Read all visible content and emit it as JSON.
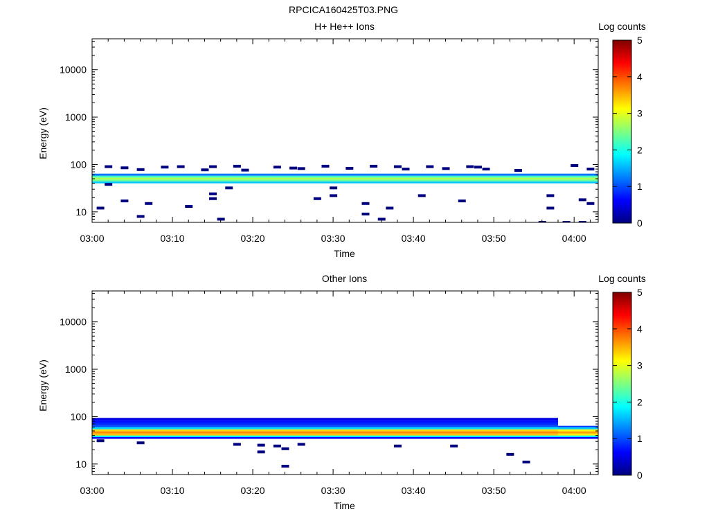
{
  "figure_title": "RPCICA160425T03.PNG",
  "colormap": [
    "#00007f",
    "#0000ff",
    "#007fff",
    "#00ffff",
    "#7fff7f",
    "#ffff00",
    "#ff7f00",
    "#ff0000",
    "#7f0000"
  ],
  "chart_data": [
    {
      "type": "heatmap",
      "title": "H+ He++ Ions",
      "xlabel": "Time",
      "ylabel": "Energy (eV)",
      "x_range": [
        "03:00",
        "04:03"
      ],
      "x_ticks": [
        "03:00",
        "03:10",
        "03:20",
        "03:30",
        "03:40",
        "03:50",
        "04:00"
      ],
      "y_scale": "log",
      "y_range": [
        6,
        45000
      ],
      "y_ticks": [
        "10",
        "100",
        "1000",
        "10000"
      ],
      "colorbar": {
        "label": "Log counts",
        "range": [
          0,
          5
        ],
        "ticks": [
          "0",
          "1",
          "2",
          "3",
          "4",
          "5"
        ]
      },
      "bands": [
        {
          "e_low": 40,
          "e_high": 44,
          "log_counts": 1.6
        },
        {
          "e_low": 44,
          "e_high": 48,
          "log_counts": 2.4
        },
        {
          "e_low": 48,
          "e_high": 53,
          "log_counts": 2.7
        },
        {
          "e_low": 53,
          "e_high": 58,
          "log_counts": 2.2
        },
        {
          "e_low": 58,
          "e_high": 64,
          "log_counts": 1.2
        }
      ],
      "band_extent": [
        "03:00",
        "04:03"
      ],
      "sparse": [
        {
          "t": "03:01",
          "e": 12
        },
        {
          "t": "03:02",
          "e": 90
        },
        {
          "t": "03:02",
          "e": 38
        },
        {
          "t": "03:04",
          "e": 85
        },
        {
          "t": "03:04",
          "e": 17
        },
        {
          "t": "03:06",
          "e": 78
        },
        {
          "t": "03:06",
          "e": 8
        },
        {
          "t": "03:07",
          "e": 15
        },
        {
          "t": "03:09",
          "e": 88
        },
        {
          "t": "03:11",
          "e": 90
        },
        {
          "t": "03:12",
          "e": 13
        },
        {
          "t": "03:14",
          "e": 77
        },
        {
          "t": "03:15",
          "e": 24
        },
        {
          "t": "03:15",
          "e": 19
        },
        {
          "t": "03:15",
          "e": 90
        },
        {
          "t": "03:16",
          "e": 7
        },
        {
          "t": "03:17",
          "e": 32
        },
        {
          "t": "03:18",
          "e": 92
        },
        {
          "t": "03:19",
          "e": 76
        },
        {
          "t": "03:23",
          "e": 88
        },
        {
          "t": "03:25",
          "e": 84
        },
        {
          "t": "03:26",
          "e": 82
        },
        {
          "t": "03:28",
          "e": 19
        },
        {
          "t": "03:29",
          "e": 92
        },
        {
          "t": "03:30",
          "e": 32
        },
        {
          "t": "03:30",
          "e": 22
        },
        {
          "t": "03:32",
          "e": 83
        },
        {
          "t": "03:34",
          "e": 15
        },
        {
          "t": "03:34",
          "e": 9
        },
        {
          "t": "03:35",
          "e": 92
        },
        {
          "t": "03:36",
          "e": 7
        },
        {
          "t": "03:37",
          "e": 12
        },
        {
          "t": "03:38",
          "e": 90
        },
        {
          "t": "03:39",
          "e": 80
        },
        {
          "t": "03:41",
          "e": 22
        },
        {
          "t": "03:42",
          "e": 90
        },
        {
          "t": "03:44",
          "e": 82
        },
        {
          "t": "03:46",
          "e": 17
        },
        {
          "t": "03:47",
          "e": 90
        },
        {
          "t": "03:48",
          "e": 88
        },
        {
          "t": "03:49",
          "e": 80
        },
        {
          "t": "03:53",
          "e": 75
        },
        {
          "t": "03:56",
          "e": 6
        },
        {
          "t": "03:57",
          "e": 22
        },
        {
          "t": "03:57",
          "e": 12
        },
        {
          "t": "03:59",
          "e": 6
        },
        {
          "t": "04:00",
          "e": 95
        },
        {
          "t": "04:01",
          "e": 18
        },
        {
          "t": "04:01",
          "e": 6
        },
        {
          "t": "04:02",
          "e": 80
        },
        {
          "t": "04:02",
          "e": 15
        }
      ]
    },
    {
      "type": "heatmap",
      "title": "Other Ions",
      "xlabel": "Time",
      "ylabel": "Energy (eV)",
      "x_range": [
        "03:00",
        "04:03"
      ],
      "x_ticks": [
        "03:00",
        "03:10",
        "03:20",
        "03:30",
        "03:40",
        "03:50",
        "04:00"
      ],
      "y_scale": "log",
      "y_range": [
        6,
        45000
      ],
      "y_ticks": [
        "10",
        "100",
        "1000",
        "10000"
      ],
      "colorbar": {
        "label": "Log counts",
        "range": [
          0,
          5
        ],
        "ticks": [
          "0",
          "1",
          "2",
          "3",
          "4",
          "5"
        ]
      },
      "bands": [
        {
          "e_low": 34,
          "e_high": 37,
          "log_counts": 0.6
        },
        {
          "e_low": 37,
          "e_high": 40,
          "log_counts": 1.8
        },
        {
          "e_low": 40,
          "e_high": 44,
          "log_counts": 3.4
        },
        {
          "e_low": 44,
          "e_high": 49,
          "log_counts": 3.7
        },
        {
          "e_low": 49,
          "e_high": 54,
          "log_counts": 3.3
        },
        {
          "e_low": 54,
          "e_high": 60,
          "log_counts": 1.7
        },
        {
          "e_low": 60,
          "e_high": 67,
          "log_counts": 1.0
        },
        {
          "e_low": 67,
          "e_high": 75,
          "log_counts": 0.8
        },
        {
          "e_low": 75,
          "e_high": 84,
          "log_counts": 0.7
        },
        {
          "e_low": 84,
          "e_high": 94,
          "log_counts": 0.5
        }
      ],
      "band_extent": [
        "03:00",
        "03:58"
      ],
      "tail_bands": [
        {
          "e_low": 34,
          "e_high": 37,
          "log_counts": 0.6
        },
        {
          "e_low": 37,
          "e_high": 40,
          "log_counts": 1.8
        },
        {
          "e_low": 40,
          "e_high": 44,
          "log_counts": 3.2
        },
        {
          "e_low": 44,
          "e_high": 49,
          "log_counts": 3.6
        },
        {
          "e_low": 49,
          "e_high": 54,
          "log_counts": 3.1
        },
        {
          "e_low": 54,
          "e_high": 60,
          "log_counts": 1.6
        },
        {
          "e_low": 60,
          "e_high": 64,
          "log_counts": 0.9
        }
      ],
      "tail_extent": [
        "03:58",
        "04:03"
      ],
      "sparse": [
        {
          "t": "03:01",
          "e": 31
        },
        {
          "t": "03:06",
          "e": 28
        },
        {
          "t": "03:18",
          "e": 26
        },
        {
          "t": "03:21",
          "e": 25
        },
        {
          "t": "03:21",
          "e": 18
        },
        {
          "t": "03:23",
          "e": 24
        },
        {
          "t": "03:24",
          "e": 21
        },
        {
          "t": "03:24",
          "e": 9
        },
        {
          "t": "03:26",
          "e": 26
        },
        {
          "t": "03:38",
          "e": 24
        },
        {
          "t": "03:45",
          "e": 24
        },
        {
          "t": "03:52",
          "e": 16
        },
        {
          "t": "03:54",
          "e": 11
        }
      ]
    }
  ]
}
